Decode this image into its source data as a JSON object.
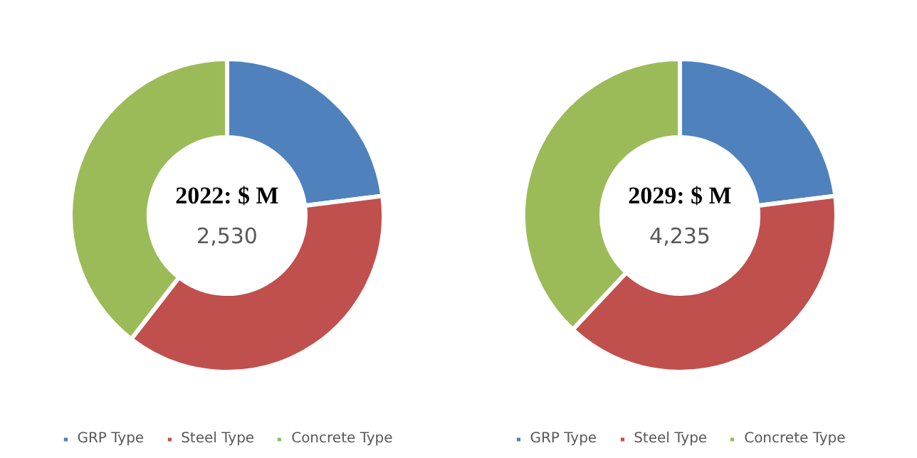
{
  "chart_data": [
    {
      "type": "donut",
      "title": "2022: $ M",
      "annotations": [
        "2,530"
      ],
      "categories": [
        "GRP Type",
        "Steel Type",
        "Concrete Type"
      ],
      "values": [
        23,
        37.5,
        39.5
      ],
      "colors": [
        "#4f81bd",
        "#c0504d",
        "#9bbb59"
      ],
      "legend": "bottom"
    },
    {
      "type": "donut",
      "title": "2029: $ M",
      "annotations": [
        "4,235"
      ],
      "categories": [
        "GRP Type",
        "Steel Type",
        "Concrete Type"
      ],
      "values": [
        23,
        39,
        38
      ],
      "colors": [
        "#4f81bd",
        "#c0504d",
        "#9bbb59"
      ],
      "legend": "bottom"
    }
  ]
}
